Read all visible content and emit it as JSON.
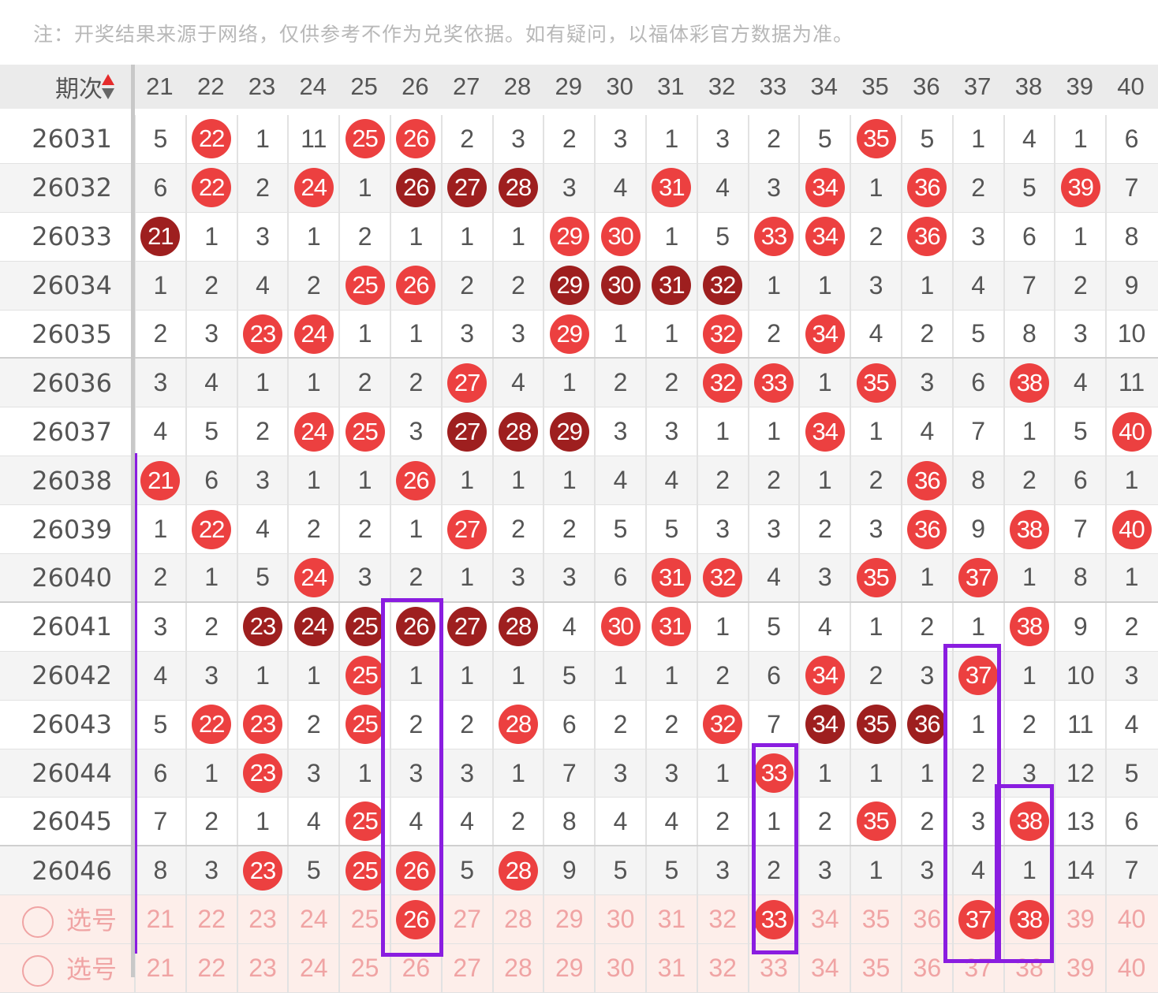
{
  "note": "注：开奖结果来源于网络，仅供参考不作为兑奖依据。如有疑问，以福体彩官方数据为准。",
  "header": {
    "label": "期次",
    "sort_icon": "sort-up-down-icon",
    "columns": [
      "21",
      "22",
      "23",
      "24",
      "25",
      "26",
      "27",
      "28",
      "29",
      "30",
      "31",
      "32",
      "33",
      "34",
      "35",
      "36",
      "37",
      "38",
      "39",
      "40"
    ]
  },
  "colors": {
    "ball_red": "#ec4040",
    "ball_dark": "#9e1f1f",
    "annotation": "#8a1de0"
  },
  "legend": {
    "R": "red ball (drawn number)",
    "D": "dark ball (consecutive drawn numbers)"
  },
  "rows": [
    {
      "period": "26031",
      "cells": [
        "5",
        "R22",
        "1",
        "11",
        "R25",
        "R26",
        "2",
        "3",
        "2",
        "3",
        "1",
        "3",
        "2",
        "5",
        "R35",
        "5",
        "1",
        "4",
        "1",
        "6"
      ]
    },
    {
      "period": "26032",
      "cells": [
        "6",
        "R22",
        "2",
        "R24",
        "1",
        "D26",
        "D27",
        "D28",
        "3",
        "4",
        "R31",
        "4",
        "3",
        "R34",
        "1",
        "R36",
        "2",
        "5",
        "R39",
        "7"
      ]
    },
    {
      "period": "26033",
      "cells": [
        "D21",
        "1",
        "3",
        "1",
        "2",
        "1",
        "1",
        "1",
        "R29",
        "R30",
        "1",
        "5",
        "R33",
        "R34",
        "2",
        "R36",
        "3",
        "6",
        "1",
        "8"
      ]
    },
    {
      "period": "26034",
      "cells": [
        "1",
        "2",
        "4",
        "2",
        "R25",
        "R26",
        "2",
        "2",
        "D29",
        "D30",
        "D31",
        "D32",
        "1",
        "1",
        "3",
        "1",
        "4",
        "7",
        "2",
        "9"
      ]
    },
    {
      "period": "26035",
      "cells": [
        "2",
        "3",
        "R23",
        "R24",
        "1",
        "1",
        "3",
        "3",
        "R29",
        "1",
        "1",
        "R32",
        "2",
        "R34",
        "4",
        "2",
        "5",
        "8",
        "3",
        "10"
      ]
    },
    {
      "period": "26036",
      "cells": [
        "3",
        "4",
        "1",
        "1",
        "2",
        "2",
        "R27",
        "4",
        "1",
        "2",
        "2",
        "R32",
        "R33",
        "1",
        "R35",
        "3",
        "6",
        "R38",
        "4",
        "11"
      ]
    },
    {
      "period": "26037",
      "cells": [
        "4",
        "5",
        "2",
        "R24",
        "R25",
        "3",
        "D27",
        "D28",
        "D29",
        "3",
        "3",
        "1",
        "1",
        "R34",
        "1",
        "4",
        "7",
        "1",
        "5",
        "R40"
      ]
    },
    {
      "period": "26038",
      "cells": [
        "R21",
        "6",
        "3",
        "1",
        "1",
        "R26",
        "1",
        "1",
        "1",
        "4",
        "4",
        "2",
        "2",
        "1",
        "2",
        "R36",
        "8",
        "2",
        "6",
        "1"
      ]
    },
    {
      "period": "26039",
      "cells": [
        "1",
        "R22",
        "4",
        "2",
        "2",
        "1",
        "R27",
        "2",
        "2",
        "5",
        "5",
        "3",
        "3",
        "2",
        "3",
        "R36",
        "9",
        "R38",
        "7",
        "R40"
      ]
    },
    {
      "period": "26040",
      "cells": [
        "2",
        "1",
        "5",
        "R24",
        "3",
        "2",
        "1",
        "3",
        "3",
        "6",
        "R31",
        "R32",
        "4",
        "3",
        "R35",
        "1",
        "R37",
        "1",
        "8",
        "1"
      ]
    },
    {
      "period": "26041",
      "cells": [
        "3",
        "2",
        "D23",
        "D24",
        "D25",
        "D26",
        "D27",
        "D28",
        "4",
        "R30",
        "R31",
        "1",
        "5",
        "4",
        "1",
        "2",
        "1",
        "R38",
        "9",
        "2"
      ]
    },
    {
      "period": "26042",
      "cells": [
        "4",
        "3",
        "1",
        "1",
        "R25",
        "1",
        "1",
        "1",
        "5",
        "1",
        "1",
        "2",
        "6",
        "R34",
        "2",
        "3",
        "R37",
        "1",
        "10",
        "3"
      ]
    },
    {
      "period": "26043",
      "cells": [
        "5",
        "R22",
        "R23",
        "2",
        "R25",
        "2",
        "2",
        "R28",
        "6",
        "2",
        "2",
        "R32",
        "7",
        "D34",
        "D35",
        "D36",
        "1",
        "2",
        "11",
        "4"
      ]
    },
    {
      "period": "26044",
      "cells": [
        "6",
        "1",
        "R23",
        "3",
        "1",
        "3",
        "3",
        "1",
        "7",
        "3",
        "3",
        "1",
        "R33",
        "1",
        "1",
        "1",
        "2",
        "3",
        "12",
        "5"
      ]
    },
    {
      "period": "26045",
      "cells": [
        "7",
        "2",
        "1",
        "4",
        "R25",
        "4",
        "4",
        "2",
        "8",
        "4",
        "4",
        "2",
        "1",
        "2",
        "R35",
        "2",
        "3",
        "R38",
        "13",
        "6"
      ]
    },
    {
      "period": "26046",
      "cells": [
        "8",
        "3",
        "R23",
        "5",
        "R25",
        "R26",
        "5",
        "R28",
        "9",
        "5",
        "5",
        "3",
        "2",
        "3",
        "1",
        "3",
        "4",
        "1",
        "14",
        "7"
      ]
    }
  ],
  "pick_rows": [
    {
      "label": "选号",
      "cells": [
        "21",
        "22",
        "23",
        "24",
        "25",
        "R26",
        "27",
        "28",
        "29",
        "30",
        "31",
        "32",
        "R33",
        "34",
        "35",
        "36",
        "R37",
        "R38",
        "39",
        "40"
      ]
    },
    {
      "label": "选号",
      "cells": [
        "21",
        "22",
        "23",
        "24",
        "25",
        "26",
        "27",
        "28",
        "29",
        "30",
        "31",
        "32",
        "33",
        "34",
        "35",
        "36",
        "37",
        "38",
        "39",
        "40"
      ]
    }
  ]
}
